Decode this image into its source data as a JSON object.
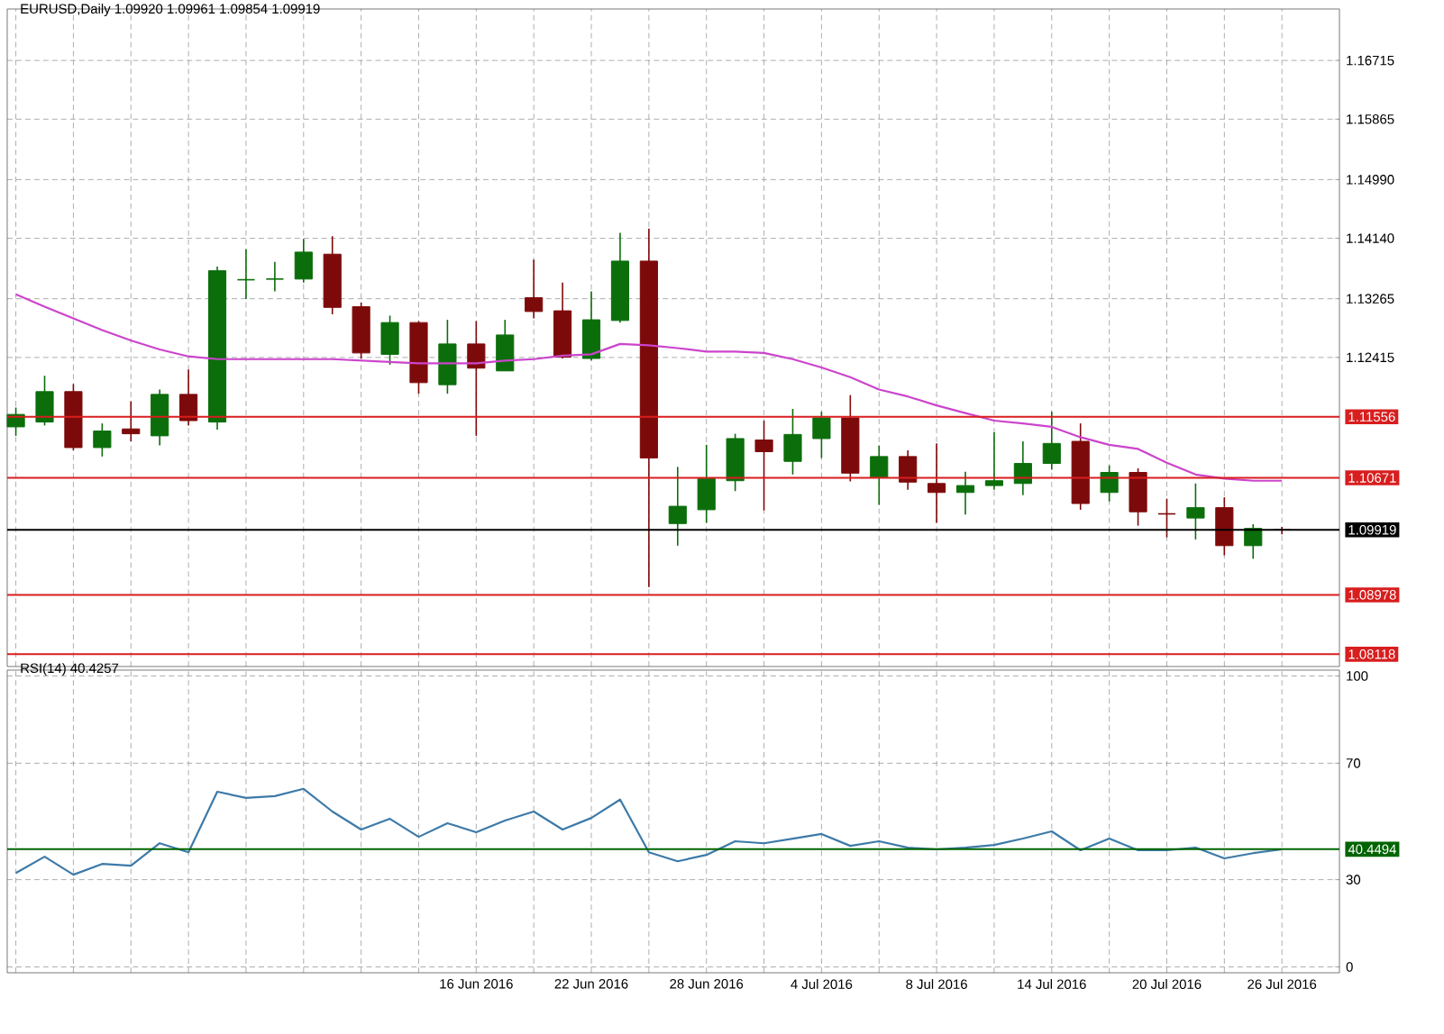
{
  "chart_data": [
    {
      "type": "candlestick",
      "title": "EURUSD,Daily 1.09920 1.09961 1.09854 1.09919",
      "categories": [
        null,
        null,
        null,
        null,
        null,
        null,
        null,
        null,
        null,
        null,
        null,
        null,
        null,
        null,
        null,
        null,
        null,
        null,
        null,
        null,
        null,
        null,
        null,
        null,
        null,
        null,
        null,
        null,
        null,
        null,
        null,
        null,
        null,
        null,
        null,
        null,
        null,
        null,
        null,
        null,
        null,
        null,
        null,
        null,
        null
      ],
      "series": [
        {
          "type": "candlestick",
          "ohlc": [
            [
              1.1141,
              1.1169,
              1.1128,
              1.1159
            ],
            [
              1.1148,
              1.1215,
              1.1143,
              1.1192
            ],
            [
              1.1192,
              1.1203,
              1.1107,
              1.1111
            ],
            [
              1.1111,
              1.1146,
              1.1098,
              1.1135
            ],
            [
              1.1138,
              1.1178,
              1.112,
              1.1131
            ],
            [
              1.1128,
              1.1195,
              1.1114,
              1.1188
            ],
            [
              1.1188,
              1.1224,
              1.1143,
              1.115
            ],
            [
              1.1148,
              1.1373,
              1.1137,
              1.1367
            ],
            [
              1.1354,
              1.1398,
              1.1326,
              1.1354
            ],
            [
              1.1355,
              1.138,
              1.1337,
              1.1355
            ],
            [
              1.1355,
              1.1413,
              1.135,
              1.1394
            ],
            [
              1.1391,
              1.1417,
              1.1304,
              1.1314
            ],
            [
              1.1315,
              1.1321,
              1.124,
              1.1248
            ],
            [
              1.1246,
              1.1302,
              1.1231,
              1.1292
            ],
            [
              1.1292,
              1.1294,
              1.1189,
              1.1205
            ],
            [
              1.1202,
              1.1296,
              1.1189,
              1.1261
            ],
            [
              1.1261,
              1.1294,
              1.1128,
              1.1226
            ],
            [
              1.1222,
              1.1296,
              1.1222,
              1.1274
            ],
            [
              1.1328,
              1.1383,
              1.1298,
              1.1308
            ],
            [
              1.1309,
              1.135,
              1.124,
              1.1242
            ],
            [
              1.124,
              1.1337,
              1.1237,
              1.1296
            ],
            [
              1.1295,
              1.1422,
              1.1292,
              1.1381
            ],
            [
              1.1381,
              1.1428,
              1.0909,
              1.1096
            ],
            [
              1.1001,
              1.1083,
              1.0969,
              1.1026
            ],
            [
              1.1021,
              1.1115,
              1.1002,
              1.1066
            ],
            [
              1.1063,
              1.1131,
              1.1048,
              1.1124
            ],
            [
              1.1122,
              1.115,
              1.102,
              1.1105
            ],
            [
              1.1091,
              1.1167,
              1.1072,
              1.113
            ],
            [
              1.1124,
              1.1163,
              1.1096,
              1.1154
            ],
            [
              1.1154,
              1.1187,
              1.1062,
              1.1074
            ],
            [
              1.1068,
              1.1114,
              1.1028,
              1.1098
            ],
            [
              1.1098,
              1.1107,
              1.105,
              1.1061
            ],
            [
              1.1059,
              1.1117,
              1.1002,
              1.1046
            ],
            [
              1.1046,
              1.1076,
              1.1014,
              1.1056
            ],
            [
              1.1056,
              1.1133,
              1.105,
              1.1063
            ],
            [
              1.1059,
              1.112,
              1.1042,
              1.1088
            ],
            [
              1.1088,
              1.1163,
              1.1079,
              1.1117
            ],
            [
              1.112,
              1.1146,
              1.1021,
              1.103
            ],
            [
              1.1046,
              1.1085,
              1.1033,
              1.1075
            ],
            [
              1.1075,
              1.1081,
              1.0998,
              1.1018
            ],
            [
              1.1015,
              1.1037,
              1.0981,
              1.1015
            ],
            [
              1.1009,
              1.1059,
              1.0978,
              1.1024
            ],
            [
              1.1024,
              1.1039,
              1.0955,
              1.0969
            ],
            [
              1.0969,
              1.1,
              1.095,
              1.0994
            ],
            [
              1.0992,
              1.09961,
              1.09854,
              1.09919
            ]
          ],
          "colors": [
            "#0b6e0b",
            "#0b6e0b",
            "#7d0a0a",
            "#0b6e0b",
            "#7d0a0a",
            "#0b6e0b",
            "#7d0a0a",
            "#0b6e0b",
            "#0b6e0b",
            "#0b6e0b",
            "#0b6e0b",
            "#7d0a0a",
            "#7d0a0a",
            "#0b6e0b",
            "#7d0a0a",
            "#0b6e0b",
            "#7d0a0a",
            "#0b6e0b",
            "#7d0a0a",
            "#7d0a0a",
            "#0b6e0b",
            "#0b6e0b",
            "#7d0a0a",
            "#0b6e0b",
            "#0b6e0b",
            "#0b6e0b",
            "#7d0a0a",
            "#0b6e0b",
            "#0b6e0b",
            "#7d0a0a",
            "#0b6e0b",
            "#7d0a0a",
            "#7d0a0a",
            "#0b6e0b",
            "#0b6e0b",
            "#0b6e0b",
            "#0b6e0b",
            "#7d0a0a",
            "#0b6e0b",
            "#7d0a0a",
            "#7d0a0a",
            "#0b6e0b",
            "#7d0a0a",
            "#0b6e0b",
            "#7d0a0a"
          ]
        },
        {
          "type": "line",
          "color": "#cc44cc",
          "values": [
            1.1333,
            1.1315,
            1.1298,
            1.1281,
            1.1266,
            1.1253,
            1.1243,
            1.1239,
            1.1239,
            1.1239,
            1.1239,
            1.1239,
            1.1237,
            1.1235,
            1.1233,
            1.1233,
            1.1233,
            1.1237,
            1.1239,
            1.1244,
            1.1246,
            1.1261,
            1.1259,
            1.1255,
            1.125,
            1.125,
            1.1248,
            1.1239,
            1.1227,
            1.1213,
            1.1195,
            1.1185,
            1.1172,
            1.1161,
            1.115,
            1.1146,
            1.1141,
            1.1126,
            1.1115,
            1.1109,
            1.1089,
            1.1072,
            1.1066,
            1.1063,
            1.1063
          ]
        }
      ],
      "ylim": [
        1.0794,
        1.1746
      ],
      "yticks": [
        1.16715,
        1.15865,
        {
          "value": 1.1499,
          "label": "1.14990"
        },
        {
          "value": 1.1414,
          "label": "1.14140"
        },
        1.13265,
        1.12415
      ],
      "ref_lines": [
        {
          "axis": "y",
          "value": 1.11556,
          "label": "1.11556",
          "color": "#d81e1e"
        },
        {
          "axis": "y",
          "value": 1.10671,
          "label": "1.10671",
          "color": "#d81e1e"
        },
        {
          "axis": "y",
          "value": 1.09919,
          "label": "1.09919",
          "color": "#000000"
        },
        {
          "axis": "y",
          "value": 1.08978,
          "label": "1.08978",
          "color": "#d81e1e"
        },
        {
          "axis": "y",
          "value": 1.08118,
          "label": "1.08118",
          "color": "#d81e1e"
        }
      ],
      "grid": true,
      "tick_labels": "y"
    },
    {
      "type": "line",
      "title": "RSI(14) 40.4257",
      "categories": [
        null,
        null,
        null,
        null,
        null,
        null,
        null,
        null,
        null,
        null,
        null,
        null,
        null,
        null,
        null,
        null,
        "16 Jun 2016",
        null,
        null,
        null,
        "22 Jun 2016",
        null,
        null,
        null,
        "28 Jun 2016",
        null,
        null,
        null,
        "4 Jul 2016",
        null,
        null,
        null,
        "8 Jul 2016",
        null,
        null,
        null,
        "14 Jul 2016",
        null,
        null,
        null,
        "20 Jul 2016",
        null,
        null,
        null,
        "26 Jul 2016"
      ],
      "series": [
        {
          "color": "#3d7aa8",
          "values": [
            32.3,
            37.9,
            31.7,
            35.4,
            34.8,
            42.5,
            39.4,
            60.2,
            58.1,
            58.7,
            61.2,
            53.4,
            47.2,
            50.9,
            44.7,
            49.4,
            46.3,
            50.3,
            53.4,
            47.2,
            51.2,
            57.5,
            39.4,
            36.3,
            38.5,
            43.2,
            42.5,
            44.1,
            45.7,
            41.6,
            43.2,
            41.0,
            40.4,
            41.0,
            41.9,
            44.1,
            46.6,
            40.1,
            44.1,
            40.1,
            40.1,
            41.0,
            37.3,
            39.1,
            40.4
          ]
        }
      ],
      "ylim": [
        -2,
        102
      ],
      "yticks": [
        0,
        30,
        70,
        100
      ],
      "ref_lines": [
        {
          "axis": "y",
          "value": 40.4494,
          "label": "40.4494",
          "color": "#006400"
        }
      ],
      "grid": true
    }
  ]
}
